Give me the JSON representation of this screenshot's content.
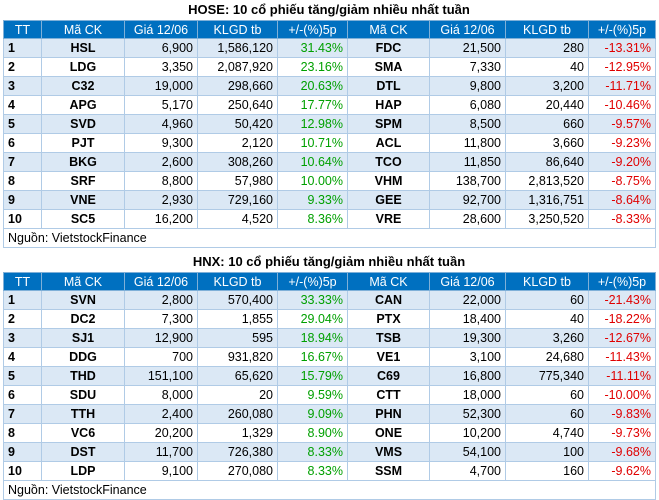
{
  "hose": {
    "title": "HOSE: 10 cổ phiếu tăng/giảm nhiều nhất tuần",
    "headers": [
      "TT",
      "Mã CK",
      "Giá 12/06",
      "KLGD tb",
      "+/-(%)5p",
      "Mã CK",
      "Giá 12/06",
      "KLGD tb",
      "+/-(%)5p"
    ],
    "rows": [
      {
        "tt": "1",
        "up_code": "HSL",
        "up_price": "6,900",
        "up_vol": "1,586,120",
        "up_pct": "31.43%",
        "down_code": "FDC",
        "down_price": "21,500",
        "down_vol": "280",
        "down_pct": "-13.31%"
      },
      {
        "tt": "2",
        "up_code": "LDG",
        "up_price": "3,350",
        "up_vol": "2,087,920",
        "up_pct": "23.16%",
        "down_code": "SMA",
        "down_price": "7,330",
        "down_vol": "40",
        "down_pct": "-12.95%"
      },
      {
        "tt": "3",
        "up_code": "C32",
        "up_price": "19,000",
        "up_vol": "298,660",
        "up_pct": "20.63%",
        "down_code": "DTL",
        "down_price": "9,800",
        "down_vol": "3,200",
        "down_pct": "-11.71%"
      },
      {
        "tt": "4",
        "up_code": "APG",
        "up_price": "5,170",
        "up_vol": "250,640",
        "up_pct": "17.77%",
        "down_code": "HAP",
        "down_price": "6,080",
        "down_vol": "20,440",
        "down_pct": "-10.46%"
      },
      {
        "tt": "5",
        "up_code": "SVD",
        "up_price": "4,960",
        "up_vol": "50,420",
        "up_pct": "12.98%",
        "down_code": "SPM",
        "down_price": "8,500",
        "down_vol": "660",
        "down_pct": "-9.57%"
      },
      {
        "tt": "6",
        "up_code": "PJT",
        "up_price": "9,300",
        "up_vol": "2,120",
        "up_pct": "10.71%",
        "down_code": "ACL",
        "down_price": "11,800",
        "down_vol": "3,660",
        "down_pct": "-9.23%"
      },
      {
        "tt": "7",
        "up_code": "BKG",
        "up_price": "2,600",
        "up_vol": "308,260",
        "up_pct": "10.64%",
        "down_code": "TCO",
        "down_price": "11,850",
        "down_vol": "86,640",
        "down_pct": "-9.20%"
      },
      {
        "tt": "8",
        "up_code": "SRF",
        "up_price": "8,800",
        "up_vol": "57,980",
        "up_pct": "10.00%",
        "down_code": "VHM",
        "down_price": "138,700",
        "down_vol": "2,813,520",
        "down_pct": "-8.75%"
      },
      {
        "tt": "9",
        "up_code": "VNE",
        "up_price": "2,930",
        "up_vol": "729,160",
        "up_pct": "9.33%",
        "down_code": "GEE",
        "down_price": "92,700",
        "down_vol": "1,316,751",
        "down_pct": "-8.64%"
      },
      {
        "tt": "10",
        "up_code": "SC5",
        "up_price": "16,200",
        "up_vol": "4,520",
        "up_pct": "8.36%",
        "down_code": "VRE",
        "down_price": "28,600",
        "down_vol": "3,250,520",
        "down_pct": "-8.33%"
      }
    ],
    "source": "Nguồn: VietstockFinance"
  },
  "hnx": {
    "title": "HNX: 10 cổ phiếu tăng/giảm nhiều nhất tuần",
    "headers": [
      "TT",
      "Mã CK",
      "Giá 12/06",
      "KLGD tb",
      "+/-(%)5p",
      "Mã CK",
      "Giá 12/06",
      "KLGD tb",
      "+/-(%)5p"
    ],
    "rows": [
      {
        "tt": "1",
        "up_code": "SVN",
        "up_price": "2,800",
        "up_vol": "570,400",
        "up_pct": "33.33%",
        "down_code": "CAN",
        "down_price": "22,000",
        "down_vol": "60",
        "down_pct": "-21.43%"
      },
      {
        "tt": "2",
        "up_code": "DC2",
        "up_price": "7,300",
        "up_vol": "1,855",
        "up_pct": "29.04%",
        "down_code": "PTX",
        "down_price": "18,400",
        "down_vol": "40",
        "down_pct": "-18.22%"
      },
      {
        "tt": "3",
        "up_code": "SJ1",
        "up_price": "12,900",
        "up_vol": "595",
        "up_pct": "18.94%",
        "down_code": "TSB",
        "down_price": "19,300",
        "down_vol": "3,260",
        "down_pct": "-12.67%"
      },
      {
        "tt": "4",
        "up_code": "DDG",
        "up_price": "700",
        "up_vol": "931,820",
        "up_pct": "16.67%",
        "down_code": "VE1",
        "down_price": "3,100",
        "down_vol": "24,680",
        "down_pct": "-11.43%"
      },
      {
        "tt": "5",
        "up_code": "THD",
        "up_price": "151,100",
        "up_vol": "65,620",
        "up_pct": "15.79%",
        "down_code": "C69",
        "down_price": "16,800",
        "down_vol": "775,340",
        "down_pct": "-11.11%"
      },
      {
        "tt": "6",
        "up_code": "SDU",
        "up_price": "8,000",
        "up_vol": "20",
        "up_pct": "9.59%",
        "down_code": "CTT",
        "down_price": "18,000",
        "down_vol": "60",
        "down_pct": "-10.00%"
      },
      {
        "tt": "7",
        "up_code": "TTH",
        "up_price": "2,400",
        "up_vol": "260,080",
        "up_pct": "9.09%",
        "down_code": "PHN",
        "down_price": "52,300",
        "down_vol": "60",
        "down_pct": "-9.83%"
      },
      {
        "tt": "8",
        "up_code": "VC6",
        "up_price": "20,200",
        "up_vol": "1,329",
        "up_pct": "8.90%",
        "down_code": "ONE",
        "down_price": "10,200",
        "down_vol": "4,740",
        "down_pct": "-9.73%"
      },
      {
        "tt": "9",
        "up_code": "DST",
        "up_price": "11,700",
        "up_vol": "726,380",
        "up_pct": "8.33%",
        "down_code": "VMS",
        "down_price": "54,100",
        "down_vol": "100",
        "down_pct": "-9.68%"
      },
      {
        "tt": "10",
        "up_code": "LDP",
        "up_price": "9,100",
        "up_vol": "270,080",
        "up_pct": "8.33%",
        "down_code": "SSM",
        "down_price": "4,700",
        "down_vol": "160",
        "down_pct": "-9.62%"
      }
    ],
    "source": "Nguồn: VietstockFinance"
  },
  "colors": {
    "header_bg": "#0070c0",
    "row_alt": "#dbe8f5",
    "positive": "#00a000",
    "negative": "#e00000"
  }
}
